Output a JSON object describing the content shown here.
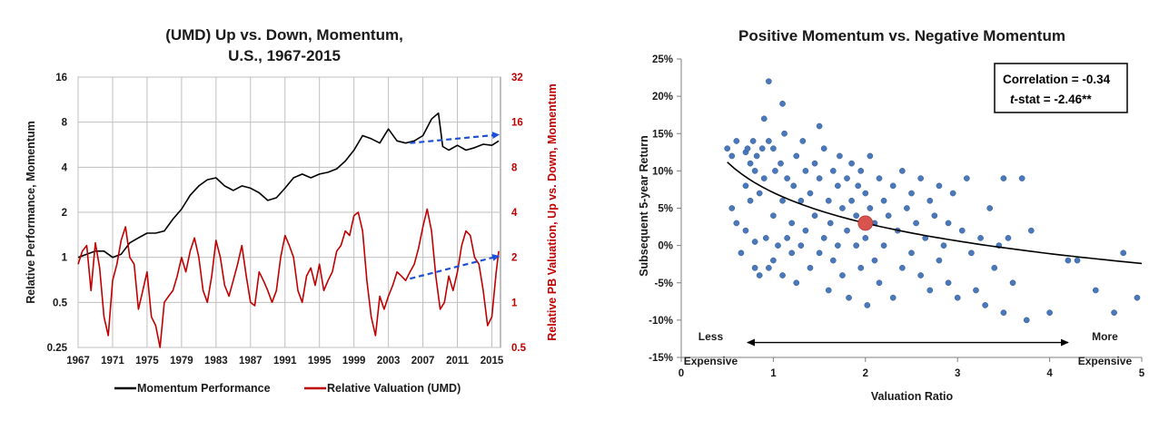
{
  "chart_data": [
    {
      "type": "line",
      "title_lines": [
        "(UMD) Up vs. Down, Momentum,",
        "U.S., 1967-2015"
      ],
      "xlabel": "",
      "ylabel": "Relative Performance, Momentum",
      "y2label": "Relative PB Valuation, Up vs. Down, Momentum",
      "xlim": [
        1967,
        2016
      ],
      "x_ticks": [
        "1967",
        "1971",
        "1975",
        "1979",
        "1983",
        "1987",
        "1991",
        "1995",
        "1999",
        "2003",
        "2007",
        "2011",
        "2015"
      ],
      "yscale": "log",
      "ylim": [
        0.25,
        16
      ],
      "y_ticks": [
        "0.25",
        "0.5",
        "1",
        "2",
        "4",
        "8",
        "16"
      ],
      "y2scale": "log",
      "y2lim": [
        0.5,
        32
      ],
      "y2_ticks": [
        "0.5",
        "1",
        "2",
        "4",
        "8",
        "16",
        "32"
      ],
      "grid": true,
      "legend_position": "bottom",
      "colors": {
        "momentum": "#000000",
        "valuation": "#c00000",
        "arrow": "#1f4fd6"
      },
      "series": [
        {
          "name": "Momentum Performance",
          "axis": "left",
          "x": [
            1967,
            1968,
            1969,
            1970,
            1971,
            1972,
            1973,
            1974,
            1975,
            1976,
            1977,
            1978,
            1979,
            1980,
            1981,
            1982,
            1983,
            1984,
            1985,
            1986,
            1987,
            1988,
            1989,
            1990,
            1991,
            1992,
            1993,
            1994,
            1995,
            1996,
            1997,
            1998,
            1999,
            2000,
            2001,
            2002,
            2003,
            2004,
            2005,
            2006,
            2007,
            2008,
            2008.8,
            2009.3,
            2010,
            2011,
            2012,
            2013,
            2014,
            2015,
            2015.8
          ],
          "y": [
            1.0,
            1.05,
            1.1,
            1.1,
            1.0,
            1.05,
            1.25,
            1.35,
            1.45,
            1.45,
            1.5,
            1.8,
            2.1,
            2.6,
            3.0,
            3.3,
            3.4,
            3.0,
            2.8,
            3.0,
            2.9,
            2.7,
            2.4,
            2.5,
            2.9,
            3.4,
            3.6,
            3.4,
            3.6,
            3.7,
            3.9,
            4.4,
            5.2,
            6.5,
            6.2,
            5.8,
            7.2,
            6.0,
            5.8,
            6.0,
            6.5,
            8.4,
            9.2,
            5.5,
            5.2,
            5.6,
            5.2,
            5.4,
            5.7,
            5.6,
            6.0
          ]
        },
        {
          "name": "Relative Valuation (UMD)",
          "axis": "right",
          "x": [
            1967,
            1967.5,
            1968,
            1968.5,
            1969,
            1969.5,
            1970,
            1970.5,
            1971,
            1971.5,
            1972,
            1972.5,
            1973,
            1973.5,
            1974,
            1974.5,
            1975,
            1975.5,
            1976,
            1976.5,
            1977,
            1977.5,
            1978,
            1978.5,
            1979,
            1979.5,
            1980,
            1980.5,
            1981,
            1981.5,
            1982,
            1982.5,
            1983,
            1983.5,
            1984,
            1984.5,
            1985,
            1985.5,
            1986,
            1986.5,
            1987,
            1987.5,
            1988,
            1988.5,
            1989,
            1989.5,
            1990,
            1990.5,
            1991,
            1991.5,
            1992,
            1992.5,
            1993,
            1993.5,
            1994,
            1994.5,
            1995,
            1995.5,
            1996,
            1996.5,
            1997,
            1997.5,
            1998,
            1998.5,
            1999,
            1999.5,
            2000,
            2000.5,
            2001,
            2001.5,
            2002,
            2002.5,
            2003,
            2003.5,
            2004,
            2004.5,
            2005,
            2005.5,
            2006,
            2006.5,
            2007,
            2007.5,
            2008,
            2008.5,
            2009,
            2009.5,
            2010,
            2010.5,
            2011,
            2011.5,
            2012,
            2012.5,
            2013,
            2013.5,
            2014,
            2014.5,
            2015,
            2015.5,
            2015.8
          ],
          "y": [
            1.8,
            2.2,
            2.4,
            1.2,
            2.5,
            1.7,
            0.8,
            0.6,
            1.4,
            1.8,
            2.6,
            3.2,
            2.0,
            1.8,
            0.9,
            1.2,
            1.6,
            0.8,
            0.7,
            0.5,
            1.0,
            1.1,
            1.2,
            1.5,
            2.0,
            1.6,
            2.2,
            2.7,
            2.0,
            1.2,
            1.0,
            1.5,
            2.6,
            2.0,
            1.3,
            1.1,
            1.4,
            1.8,
            2.4,
            1.5,
            1.0,
            0.95,
            1.6,
            1.4,
            1.2,
            1.0,
            1.2,
            2.0,
            2.8,
            2.4,
            2.0,
            1.2,
            1.0,
            1.5,
            1.7,
            1.3,
            1.8,
            1.2,
            1.4,
            1.6,
            2.2,
            2.4,
            3.0,
            2.8,
            3.8,
            4.0,
            3.0,
            1.4,
            0.8,
            0.6,
            1.1,
            0.9,
            1.1,
            1.3,
            1.6,
            1.5,
            1.4,
            1.6,
            1.8,
            2.3,
            3.2,
            4.2,
            3.0,
            1.5,
            0.9,
            1.0,
            1.5,
            1.2,
            1.6,
            2.4,
            3.0,
            2.8,
            2.0,
            1.8,
            1.2,
            0.7,
            0.8,
            1.6,
            2.2
          ]
        }
      ],
      "arrows": [
        {
          "axis": "left",
          "x1": 2005.5,
          "y1": 5.8,
          "x2": 2015.8,
          "y2": 6.6
        },
        {
          "axis": "left",
          "x1": 2005.5,
          "y1": 0.72,
          "x2": 2015.8,
          "y2": 1.02
        }
      ]
    },
    {
      "type": "scatter",
      "title": "Positive Momentum vs. Negative Momentum",
      "xlabel": "Valuation Ratio",
      "ylabel": "Subsequent 5-year Return",
      "xlim": [
        0,
        5
      ],
      "x_ticks": [
        "0",
        "1",
        "2",
        "3",
        "4",
        "5"
      ],
      "ylim": [
        -15,
        25
      ],
      "y_ticks": [
        "-15%",
        "-10%",
        "-5%",
        "0%",
        "5%",
        "10%",
        "15%",
        "20%",
        "25%"
      ],
      "grid": false,
      "stats": {
        "correlation": "Correlation =  -0.34",
        "tstat_prefix": "t",
        "tstat_rest": "-stat = -2.46**"
      },
      "annotations": {
        "left_line1": "Less",
        "left_line2": "Expensive",
        "right_line1": "More",
        "right_line2": "Expensive",
        "arrow_y": -13,
        "arrow_x1": 0.72,
        "arrow_x2": 4.2
      },
      "colors": {
        "points": "#4a78b8",
        "highlight": "#d9534f",
        "fit": "#000000"
      },
      "fit_curve": {
        "form": "log",
        "a": 3.0,
        "b": -5.9,
        "x_range": [
          0.5,
          5
        ]
      },
      "highlight_point": {
        "x": 2.0,
        "y": 3.0
      },
      "points": [
        [
          0.5,
          13
        ],
        [
          0.55,
          12
        ],
        [
          0.55,
          5
        ],
        [
          0.6,
          14
        ],
        [
          0.6,
          3
        ],
        [
          0.65,
          -1
        ],
        [
          0.7,
          12.5
        ],
        [
          0.7,
          8
        ],
        [
          0.7,
          2
        ],
        [
          0.72,
          13
        ],
        [
          0.75,
          11
        ],
        [
          0.75,
          6
        ],
        [
          0.78,
          14
        ],
        [
          0.8,
          10
        ],
        [
          0.8,
          0.5
        ],
        [
          0.8,
          -3
        ],
        [
          0.82,
          12
        ],
        [
          0.85,
          7
        ],
        [
          0.85,
          -4
        ],
        [
          0.88,
          13
        ],
        [
          0.9,
          17
        ],
        [
          0.9,
          9
        ],
        [
          0.92,
          1
        ],
        [
          0.95,
          22
        ],
        [
          0.95,
          14
        ],
        [
          0.95,
          -3
        ],
        [
          1.0,
          13
        ],
        [
          1.0,
          4
        ],
        [
          1.0,
          -2
        ],
        [
          1.02,
          10
        ],
        [
          1.05,
          0
        ],
        [
          1.08,
          11
        ],
        [
          1.1,
          19
        ],
        [
          1.1,
          6
        ],
        [
          1.1,
          -4
        ],
        [
          1.12,
          15
        ],
        [
          1.15,
          9
        ],
        [
          1.15,
          1
        ],
        [
          1.2,
          3
        ],
        [
          1.2,
          -1
        ],
        [
          1.22,
          8
        ],
        [
          1.25,
          12
        ],
        [
          1.25,
          -5
        ],
        [
          1.3,
          6
        ],
        [
          1.3,
          0
        ],
        [
          1.32,
          14
        ],
        [
          1.35,
          10
        ],
        [
          1.35,
          2
        ],
        [
          1.4,
          -3
        ],
        [
          1.4,
          7
        ],
        [
          1.45,
          11
        ],
        [
          1.45,
          4
        ],
        [
          1.5,
          16
        ],
        [
          1.5,
          -1
        ],
        [
          1.5,
          9
        ],
        [
          1.55,
          1
        ],
        [
          1.55,
          13
        ],
        [
          1.6,
          6
        ],
        [
          1.6,
          -6
        ],
        [
          1.62,
          3
        ],
        [
          1.65,
          10
        ],
        [
          1.65,
          -2
        ],
        [
          1.7,
          8
        ],
        [
          1.7,
          0
        ],
        [
          1.72,
          12
        ],
        [
          1.75,
          5
        ],
        [
          1.75,
          -4
        ],
        [
          1.8,
          9
        ],
        [
          1.8,
          2
        ],
        [
          1.82,
          -7
        ],
        [
          1.85,
          6
        ],
        [
          1.85,
          11
        ],
        [
          1.9,
          0
        ],
        [
          1.9,
          4
        ],
        [
          1.92,
          8
        ],
        [
          1.95,
          -3
        ],
        [
          1.95,
          10
        ],
        [
          2.0,
          1
        ],
        [
          2.0,
          7
        ],
        [
          2.02,
          -8
        ],
        [
          2.05,
          5
        ],
        [
          2.05,
          12
        ],
        [
          2.1,
          -2
        ],
        [
          2.1,
          3
        ],
        [
          2.15,
          9
        ],
        [
          2.15,
          -5
        ],
        [
          2.2,
          6
        ],
        [
          2.2,
          0
        ],
        [
          2.25,
          4
        ],
        [
          2.3,
          8
        ],
        [
          2.3,
          -7
        ],
        [
          2.35,
          2
        ],
        [
          2.4,
          10
        ],
        [
          2.4,
          -3
        ],
        [
          2.45,
          5
        ],
        [
          2.5,
          -1
        ],
        [
          2.5,
          7
        ],
        [
          2.55,
          3
        ],
        [
          2.6,
          -4
        ],
        [
          2.6,
          9
        ],
        [
          2.65,
          1
        ],
        [
          2.7,
          6
        ],
        [
          2.7,
          -6
        ],
        [
          2.75,
          4
        ],
        [
          2.8,
          -2
        ],
        [
          2.8,
          8
        ],
        [
          2.85,
          0
        ],
        [
          2.9,
          -5
        ],
        [
          2.9,
          3
        ],
        [
          2.95,
          7
        ],
        [
          3.0,
          -7
        ],
        [
          3.05,
          2
        ],
        [
          3.1,
          9
        ],
        [
          3.15,
          -1
        ],
        [
          3.2,
          -6
        ],
        [
          3.25,
          1
        ],
        [
          3.3,
          -8
        ],
        [
          3.35,
          5
        ],
        [
          3.4,
          -3
        ],
        [
          3.45,
          0
        ],
        [
          3.5,
          9
        ],
        [
          3.5,
          -9
        ],
        [
          3.55,
          1
        ],
        [
          3.6,
          -5
        ],
        [
          3.7,
          9
        ],
        [
          3.75,
          -10
        ],
        [
          3.8,
          2
        ],
        [
          4.0,
          -9
        ],
        [
          4.2,
          -2
        ],
        [
          4.3,
          -2
        ],
        [
          4.5,
          -6
        ],
        [
          4.7,
          -9
        ],
        [
          4.8,
          -1
        ],
        [
          4.95,
          -7
        ]
      ]
    }
  ]
}
